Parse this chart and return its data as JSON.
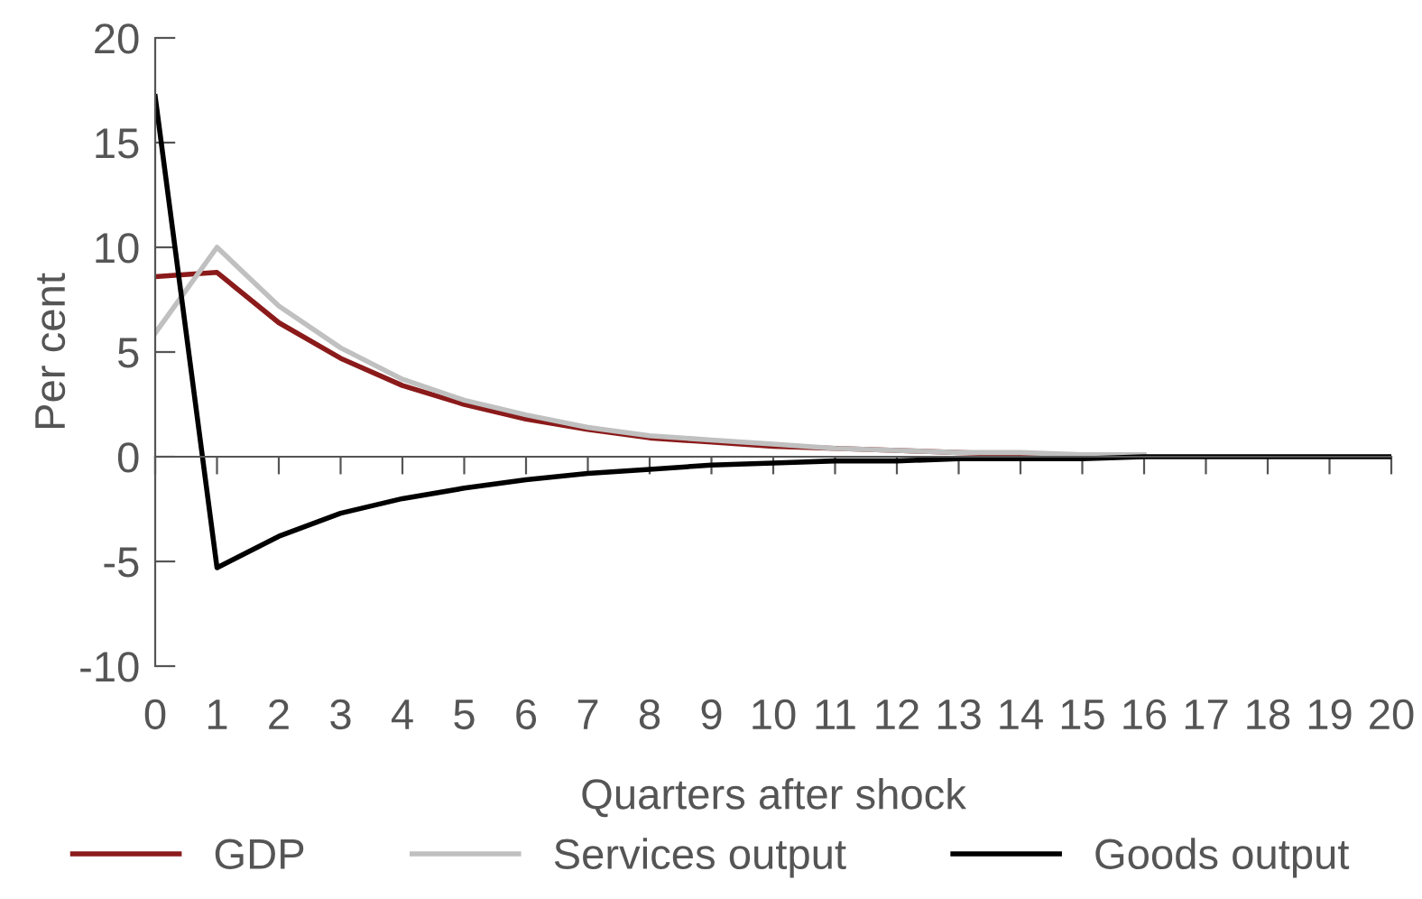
{
  "chart_data": {
    "type": "line",
    "xlabel": "Quarters after shock",
    "ylabel": "Per cent",
    "x": [
      0,
      1,
      2,
      3,
      4,
      5,
      6,
      7,
      8,
      9,
      10,
      11,
      12,
      13,
      14,
      15,
      16,
      17,
      18,
      19,
      20
    ],
    "series": [
      {
        "name": "GDP",
        "color": "#8b1a1a",
        "values": [
          8.6,
          8.8,
          6.4,
          4.7,
          3.4,
          2.5,
          1.8,
          1.3,
          0.9,
          0.7,
          0.5,
          0.4,
          0.3,
          0.2,
          0.1,
          0.1,
          null,
          null,
          null,
          null,
          null
        ]
      },
      {
        "name": "Services output",
        "color": "#c0c0c0",
        "values": [
          5.9,
          10,
          7.2,
          5.2,
          3.7,
          2.7,
          2.0,
          1.4,
          1.0,
          0.8,
          0.6,
          0.4,
          0.3,
          0.2,
          0.2,
          0.1,
          0.1,
          null,
          null,
          null,
          null
        ]
      },
      {
        "name": "Goods output",
        "color": "#000000",
        "values": [
          17.2,
          -5.3,
          -3.8,
          -2.7,
          -2.0,
          -1.5,
          -1.1,
          -0.8,
          -0.6,
          -0.4,
          -0.3,
          -0.2,
          -0.2,
          -0.1,
          -0.1,
          -0.1,
          0,
          0,
          0,
          0,
          0
        ]
      }
    ],
    "xlim": [
      0,
      20
    ],
    "xticks": [
      0,
      1,
      2,
      3,
      4,
      5,
      6,
      7,
      8,
      9,
      10,
      11,
      12,
      13,
      14,
      15,
      16,
      17,
      18,
      19,
      20
    ],
    "ylim": [
      -10,
      20
    ],
    "yticks": [
      -10,
      -5,
      0,
      5,
      10,
      15,
      20
    ],
    "legend": "bottom",
    "marker": "none",
    "line_style": "solid"
  }
}
